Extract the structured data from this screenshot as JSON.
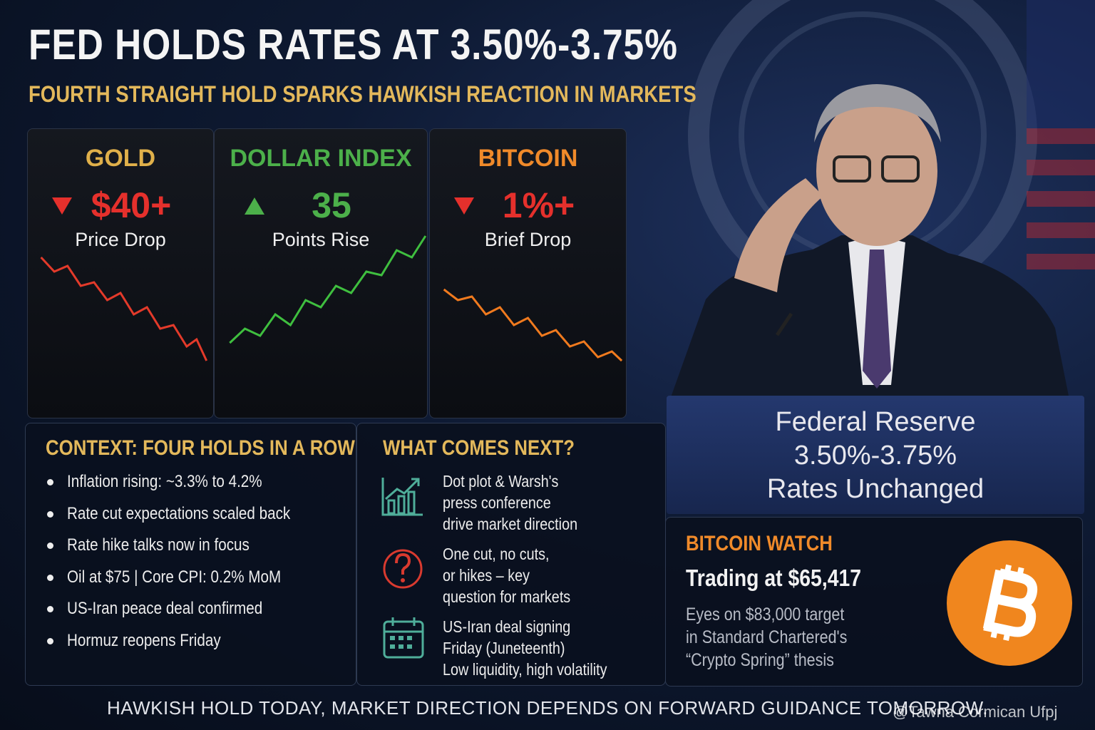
{
  "header": {
    "title": "FED HOLDS RATES AT 3.50%-3.75%",
    "subtitle": "FOURTH STRAIGHT HOLD SPARKS HAWKISH REACTION IN MARKETS"
  },
  "cards": [
    {
      "label": "GOLD",
      "value": "$40+",
      "caption": "Price Drop"
    },
    {
      "label": "DOLLAR INDEX",
      "value": "35",
      "caption": "Points Rise"
    },
    {
      "label": "BITCOIN",
      "value": "1%+",
      "caption": "Brief Drop"
    }
  ],
  "context": {
    "title": "CONTEXT: FOUR HOLDS IN A ROW",
    "items": [
      "Inflation rising: ~3.3% to 4.2%",
      "Rate cut expectations scaled back",
      "Rate hike talks now in focus",
      "Oil at $75 | Core CPI: 0.2% MoM",
      "US-Iran peace deal confirmed",
      "Hormuz reopens Friday"
    ]
  },
  "next": {
    "title": "WHAT COMES NEXT?",
    "items": [
      {
        "lines": [
          "Dot plot & Warsh's",
          "press conference",
          "drive market direction"
        ]
      },
      {
        "lines": [
          "One cut, no cuts,",
          "or hikes – key",
          "question for markets"
        ]
      },
      {
        "lines": [
          "US-Iran deal signing",
          "Friday (Juneteenth)",
          "Low liquidity, high volatility"
        ]
      }
    ]
  },
  "podium": {
    "lines": [
      "Federal Reserve",
      "3.50%-3.75%",
      "Rates Unchanged"
    ]
  },
  "bitcoin_watch": {
    "title": "BITCOIN WATCH",
    "price": "Trading at $65,417",
    "lines": [
      "Eyes on $83,000 target",
      "in Standard Chartered's",
      "“Crypto Spring” thesis"
    ]
  },
  "footer": "HAWKISH HOLD TODAY, MARKET DIRECTION DEPENDS ON FORWARD GUIDANCE TOMORROW.",
  "watermark": "@Tawna Cormican Ufpj"
}
